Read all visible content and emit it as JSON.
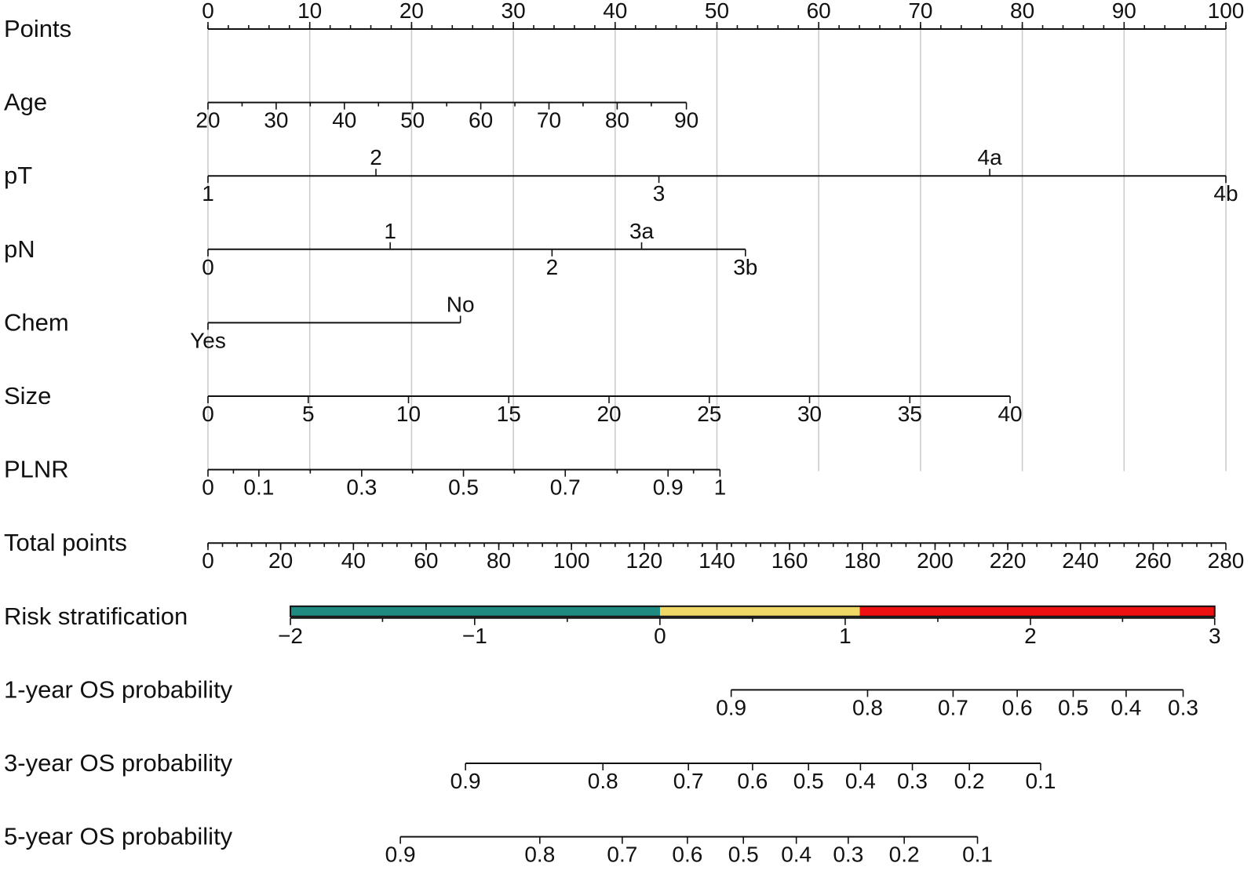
{
  "chart_data": {
    "type": "nomogram",
    "rows": [
      {
        "id": "points",
        "label": "Points",
        "ticks": [
          {
            "label": "0",
            "points": 0,
            "side": "above"
          },
          {
            "label": "10",
            "points": 10,
            "side": "above"
          },
          {
            "label": "20",
            "points": 20,
            "side": "above"
          },
          {
            "label": "30",
            "points": 30,
            "side": "above"
          },
          {
            "label": "40",
            "points": 40,
            "side": "above"
          },
          {
            "label": "50",
            "points": 50,
            "side": "above"
          },
          {
            "label": "60",
            "points": 60,
            "side": "above"
          },
          {
            "label": "70",
            "points": 70,
            "side": "above"
          },
          {
            "label": "80",
            "points": 80,
            "side": "above"
          },
          {
            "label": "90",
            "points": 90,
            "side": "above"
          },
          {
            "label": "100",
            "points": 100,
            "side": "above"
          }
        ],
        "minor_step": 2
      },
      {
        "id": "age",
        "label": "Age",
        "ticks": [
          {
            "label": "20",
            "points": 0,
            "side": "below"
          },
          {
            "label": "30",
            "points": 6.7,
            "side": "below"
          },
          {
            "label": "40",
            "points": 13.4,
            "side": "below"
          },
          {
            "label": "50",
            "points": 20.1,
            "side": "below"
          },
          {
            "label": "60",
            "points": 26.8,
            "side": "below"
          },
          {
            "label": "70",
            "points": 33.5,
            "side": "below"
          },
          {
            "label": "80",
            "points": 40.2,
            "side": "below"
          },
          {
            "label": "90",
            "points": 47.0,
            "side": "below"
          }
        ],
        "minor_ticks": [
          3.35,
          10.05,
          16.75,
          23.45,
          30.15,
          36.85,
          43.55
        ]
      },
      {
        "id": "pt",
        "label": "pT",
        "ticks": [
          {
            "label": "1",
            "points": 0,
            "side": "below"
          },
          {
            "label": "2",
            "points": 16.5,
            "side": "above"
          },
          {
            "label": "3",
            "points": 44.3,
            "side": "below"
          },
          {
            "label": "4a",
            "points": 76.8,
            "side": "above"
          },
          {
            "label": "4b",
            "points": 100,
            "side": "below"
          }
        ]
      },
      {
        "id": "pn",
        "label": "pN",
        "ticks": [
          {
            "label": "0",
            "points": 0,
            "side": "below"
          },
          {
            "label": "1",
            "points": 17.9,
            "side": "above"
          },
          {
            "label": "2",
            "points": 33.8,
            "side": "below"
          },
          {
            "label": "3a",
            "points": 42.6,
            "side": "above"
          },
          {
            "label": "3b",
            "points": 52.8,
            "side": "below"
          }
        ]
      },
      {
        "id": "chem",
        "label": "Chem",
        "ticks": [
          {
            "label": "Yes",
            "points": 0,
            "side": "below"
          },
          {
            "label": "No",
            "points": 24.8,
            "side": "above"
          }
        ]
      },
      {
        "id": "size",
        "label": "Size",
        "ticks": [
          {
            "label": "0",
            "points": 0,
            "side": "below"
          },
          {
            "label": "5",
            "points": 9.85,
            "side": "below"
          },
          {
            "label": "10",
            "points": 19.7,
            "side": "below"
          },
          {
            "label": "15",
            "points": 29.55,
            "side": "below"
          },
          {
            "label": "20",
            "points": 39.4,
            "side": "below"
          },
          {
            "label": "25",
            "points": 49.25,
            "side": "below"
          },
          {
            "label": "30",
            "points": 59.1,
            "side": "below"
          },
          {
            "label": "35",
            "points": 68.95,
            "side": "below"
          },
          {
            "label": "40",
            "points": 78.8,
            "side": "below"
          }
        ]
      },
      {
        "id": "plnr",
        "label": "PLNR",
        "ticks": [
          {
            "label": "0",
            "points": 0,
            "side": "below"
          },
          {
            "label": "0.1",
            "points": 5.0,
            "side": "below"
          },
          {
            "label": "0.3",
            "points": 15.1,
            "side": "below"
          },
          {
            "label": "0.5",
            "points": 25.1,
            "side": "below"
          },
          {
            "label": "0.7",
            "points": 35.1,
            "side": "below"
          },
          {
            "label": "0.9",
            "points": 45.2,
            "side": "below"
          },
          {
            "label": "1",
            "points": 50.3,
            "side": "below"
          }
        ],
        "minor_ticks": [
          2.5,
          10.05,
          20.1,
          30.1,
          40.2,
          47.7
        ]
      },
      {
        "id": "total",
        "label": "Total points",
        "ticks": [
          {
            "label": "0",
            "points": 0,
            "side": "below"
          },
          {
            "label": "20",
            "points": 7.14,
            "side": "below"
          },
          {
            "label": "40",
            "points": 14.29,
            "side": "below"
          },
          {
            "label": "60",
            "points": 21.43,
            "side": "below"
          },
          {
            "label": "80",
            "points": 28.57,
            "side": "below"
          },
          {
            "label": "100",
            "points": 35.71,
            "side": "below"
          },
          {
            "label": "120",
            "points": 42.86,
            "side": "below"
          },
          {
            "label": "140",
            "points": 50.0,
            "side": "below"
          },
          {
            "label": "160",
            "points": 57.14,
            "side": "below"
          },
          {
            "label": "180",
            "points": 64.29,
            "side": "below"
          },
          {
            "label": "200",
            "points": 71.43,
            "side": "below"
          },
          {
            "label": "220",
            "points": 78.57,
            "side": "below"
          },
          {
            "label": "240",
            "points": 85.71,
            "side": "below"
          },
          {
            "label": "260",
            "points": 92.86,
            "side": "below"
          },
          {
            "label": "280",
            "points": 100,
            "side": "below"
          }
        ],
        "minor_step": 1.4286
      },
      {
        "id": "risk",
        "label": "Risk stratification",
        "bands": [
          {
            "from": -2,
            "to": 0,
            "color": "#1f8a80"
          },
          {
            "from": 0,
            "to": 1.08,
            "color": "#f0d866"
          },
          {
            "from": 1.08,
            "to": 3,
            "color": "#ee1111"
          }
        ],
        "ticks": [
          {
            "label": "−2",
            "points": 8.1,
            "value": -2,
            "side": "below"
          },
          {
            "label": "−1",
            "points": 26.2,
            "value": -1,
            "side": "below"
          },
          {
            "label": "0",
            "points": 44.4,
            "value": 0,
            "side": "below"
          },
          {
            "label": "1",
            "points": 62.6,
            "value": 1,
            "side": "below"
          },
          {
            "label": "2",
            "points": 80.8,
            "value": 2,
            "side": "below"
          },
          {
            "label": "3",
            "points": 98.9,
            "value": 3,
            "side": "below"
          }
        ],
        "minor_ticks": [
          17.15,
          35.3,
          53.5,
          71.7,
          89.85
        ]
      },
      {
        "id": "os1",
        "label": "1-year OS probability",
        "ticks": [
          {
            "label": "0.9",
            "points": 51.4,
            "side": "below"
          },
          {
            "label": "0.8",
            "points": 64.8,
            "side": "below"
          },
          {
            "label": "0.7",
            "points": 73.2,
            "side": "below"
          },
          {
            "label": "0.6",
            "points": 79.5,
            "side": "below"
          },
          {
            "label": "0.5",
            "points": 85.0,
            "side": "below"
          },
          {
            "label": "0.4",
            "points": 90.2,
            "side": "below"
          },
          {
            "label": "0.3",
            "points": 95.8,
            "side": "below"
          }
        ]
      },
      {
        "id": "os3",
        "label": "3-year OS probability",
        "ticks": [
          {
            "label": "0.9",
            "points": 25.3,
            "side": "below"
          },
          {
            "label": "0.8",
            "points": 38.8,
            "side": "below"
          },
          {
            "label": "0.7",
            "points": 47.2,
            "side": "below"
          },
          {
            "label": "0.6",
            "points": 53.5,
            "side": "below"
          },
          {
            "label": "0.5",
            "points": 59.0,
            "side": "below"
          },
          {
            "label": "0.4",
            "points": 64.1,
            "side": "below"
          },
          {
            "label": "0.3",
            "points": 69.2,
            "side": "below"
          },
          {
            "label": "0.2",
            "points": 74.8,
            "side": "below"
          },
          {
            "label": "0.1",
            "points": 81.8,
            "side": "below"
          }
        ]
      },
      {
        "id": "os5",
        "label": "5-year OS probability",
        "ticks": [
          {
            "label": "0.9",
            "points": 18.9,
            "side": "below"
          },
          {
            "label": "0.8",
            "points": 32.6,
            "side": "below"
          },
          {
            "label": "0.7",
            "points": 40.7,
            "side": "below"
          },
          {
            "label": "0.6",
            "points": 47.1,
            "side": "below"
          },
          {
            "label": "0.5",
            "points": 52.6,
            "side": "below"
          },
          {
            "label": "0.4",
            "points": 57.8,
            "side": "below"
          },
          {
            "label": "0.3",
            "points": 62.9,
            "side": "below"
          },
          {
            "label": "0.2",
            "points": 68.4,
            "side": "below"
          },
          {
            "label": "0.1",
            "points": 75.6,
            "side": "below"
          }
        ]
      }
    ],
    "reference_lines": [
      0,
      10,
      20,
      30,
      40,
      50,
      60,
      70,
      80,
      90,
      100
    ],
    "grid": true
  }
}
